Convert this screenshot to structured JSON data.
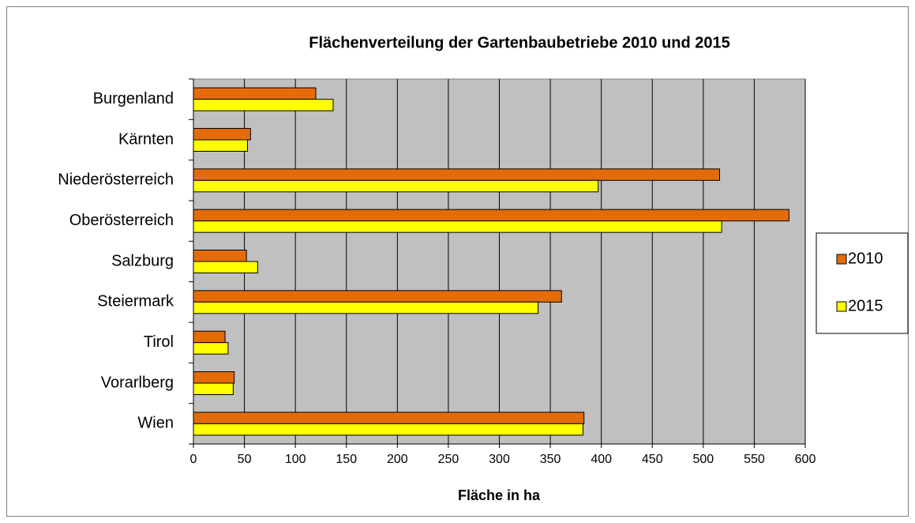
{
  "chart_data": {
    "type": "hbar",
    "title": "Flächenverteilung der Gartenbaubetriebe 2010 und 2015",
    "x_label": "Fläche in ha",
    "categories": [
      "Burgenland",
      "Kärnten",
      "Niederösterreich",
      "Oberösterreich",
      "Salzburg",
      "Steiermark",
      "Tirol",
      "Vorarlberg",
      "Wien"
    ],
    "series": [
      {
        "name": "2010",
        "color": "#e36c09",
        "values": [
          120,
          56,
          516,
          584,
          52,
          361,
          31,
          40,
          383
        ]
      },
      {
        "name": "2015",
        "color": "#ffff00",
        "values": [
          137,
          53,
          397,
          518,
          63,
          338,
          34,
          39,
          382
        ]
      }
    ],
    "xlim": [
      0,
      600
    ],
    "xticks": [
      0,
      50,
      100,
      150,
      200,
      250,
      300,
      350,
      400,
      450,
      500,
      550,
      600
    ],
    "grid": true,
    "legend": "right"
  }
}
